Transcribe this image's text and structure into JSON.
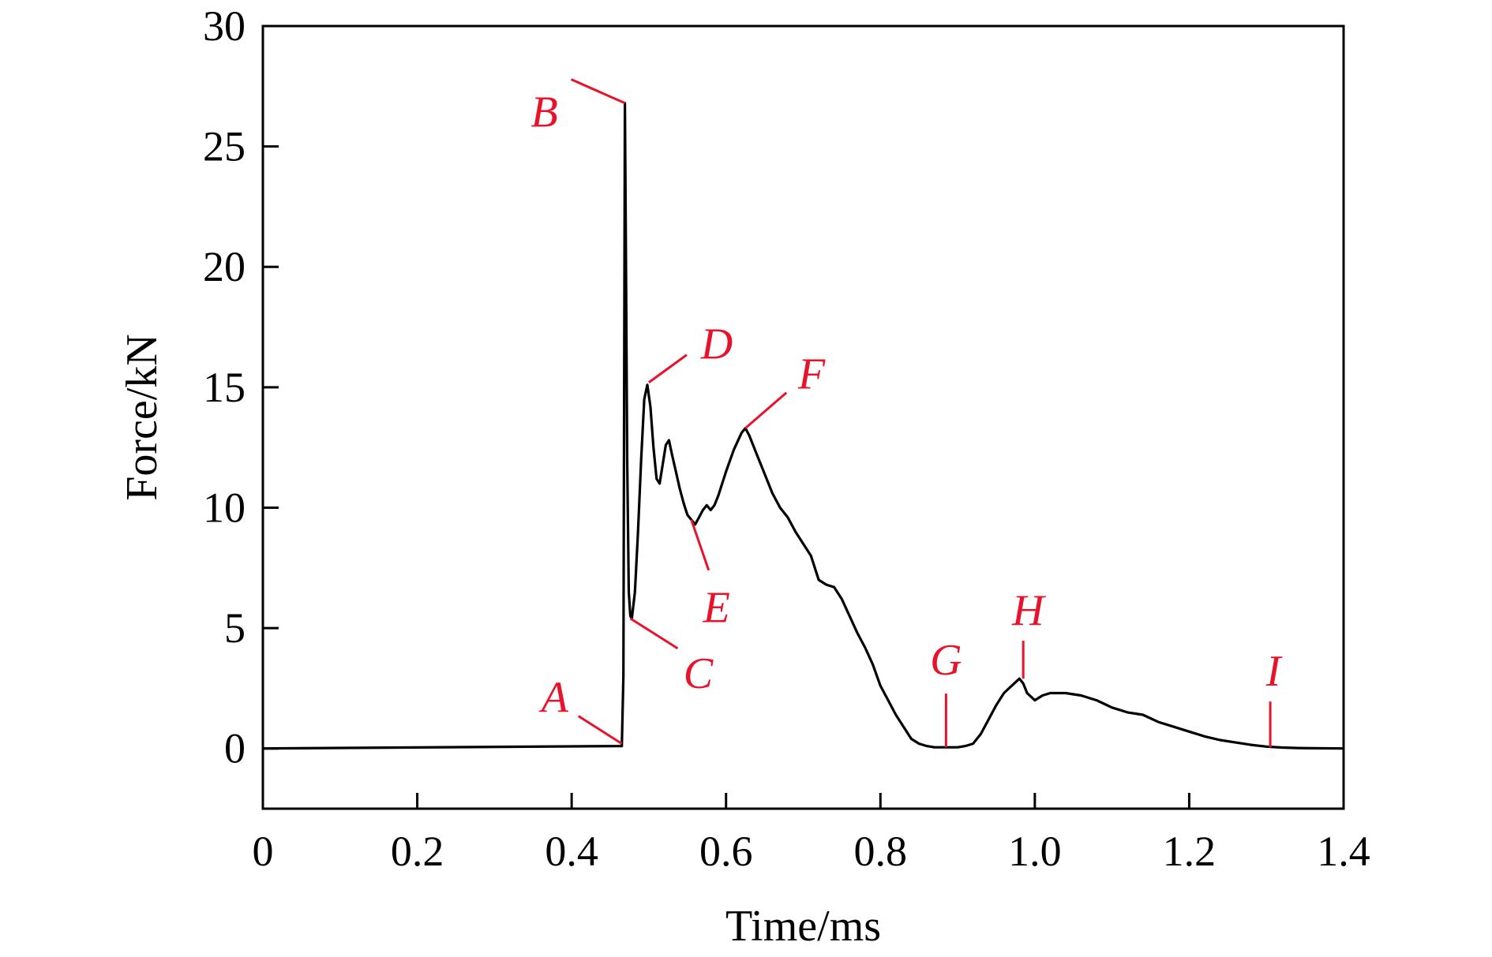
{
  "chart_data": {
    "type": "line",
    "title": "",
    "xlabel": "Time/ms",
    "ylabel": "Force/kN",
    "xlim": [
      0,
      1.4
    ],
    "ylim": [
      -2.5,
      30
    ],
    "xticks": [
      0,
      0.2,
      0.4,
      0.6,
      0.8,
      1.0,
      1.2,
      1.4
    ],
    "xtick_labels": [
      "0",
      "0.2",
      "0.4",
      "0.6",
      "0.8",
      "1.0",
      "1.2",
      "1.4"
    ],
    "yticks": [
      0,
      5,
      10,
      15,
      20,
      25,
      30
    ],
    "ytick_labels": [
      "0",
      "5",
      "10",
      "15",
      "20",
      "25",
      "30"
    ],
    "grid": false,
    "line_color": "#000000",
    "annotation_color": "#e8132b",
    "series": [
      {
        "x": [
          0,
          0.465,
          0.467,
          0.469,
          0.47,
          0.472,
          0.474,
          0.476,
          0.478,
          0.482,
          0.486,
          0.49,
          0.494,
          0.498,
          0.502,
          0.506,
          0.51,
          0.514,
          0.518,
          0.522,
          0.526,
          0.53,
          0.535,
          0.54,
          0.545,
          0.55,
          0.555,
          0.56,
          0.565,
          0.57,
          0.575,
          0.58,
          0.585,
          0.59,
          0.6,
          0.61,
          0.62,
          0.625,
          0.63,
          0.64,
          0.65,
          0.66,
          0.67,
          0.68,
          0.69,
          0.7,
          0.71,
          0.72,
          0.73,
          0.74,
          0.75,
          0.76,
          0.77,
          0.78,
          0.79,
          0.8,
          0.81,
          0.82,
          0.83,
          0.84,
          0.85,
          0.86,
          0.87,
          0.88,
          0.89,
          0.9,
          0.91,
          0.92,
          0.93,
          0.94,
          0.95,
          0.96,
          0.97,
          0.98,
          0.985,
          0.99,
          1.0,
          1.01,
          1.02,
          1.04,
          1.06,
          1.08,
          1.1,
          1.12,
          1.14,
          1.16,
          1.18,
          1.2,
          1.22,
          1.24,
          1.26,
          1.28,
          1.3,
          1.32,
          1.34,
          1.36,
          1.4
        ],
        "y": [
          0,
          0.1,
          3.0,
          26.8,
          22.0,
          12.0,
          6.5,
          5.5,
          5.4,
          6.5,
          9.0,
          12.0,
          14.5,
          15.1,
          14.2,
          12.5,
          11.2,
          11.0,
          11.8,
          12.6,
          12.8,
          12.2,
          11.5,
          10.8,
          10.2,
          9.7,
          9.5,
          9.3,
          9.6,
          9.9,
          10.1,
          9.9,
          10.1,
          10.5,
          11.5,
          12.4,
          13.1,
          13.3,
          13.0,
          12.2,
          11.4,
          10.6,
          10.0,
          9.6,
          9.0,
          8.5,
          8.0,
          7.0,
          6.8,
          6.7,
          6.2,
          5.5,
          4.8,
          4.2,
          3.5,
          2.6,
          2.0,
          1.4,
          0.9,
          0.4,
          0.2,
          0.1,
          0.05,
          0.05,
          0.05,
          0.05,
          0.1,
          0.2,
          0.6,
          1.2,
          1.8,
          2.3,
          2.6,
          2.9,
          2.7,
          2.3,
          2.0,
          2.2,
          2.3,
          2.3,
          2.2,
          2.0,
          1.7,
          1.5,
          1.4,
          1.1,
          0.9,
          0.7,
          0.5,
          0.35,
          0.25,
          0.15,
          0.08,
          0.04,
          0.02,
          0.01,
          0
        ]
      }
    ],
    "annotations": [
      {
        "label": "A",
        "x": 0.465,
        "y": 0.2
      },
      {
        "label": "B",
        "x": 0.469,
        "y": 26.8
      },
      {
        "label": "C",
        "x": 0.476,
        "y": 5.4
      },
      {
        "label": "D",
        "x": 0.5,
        "y": 15.2
      },
      {
        "label": "E",
        "x": 0.555,
        "y": 9.5
      },
      {
        "label": "F",
        "x": 0.625,
        "y": 13.3
      },
      {
        "label": "G",
        "x": 0.885,
        "y": 0.05
      },
      {
        "label": "H",
        "x": 0.985,
        "y": 2.9
      },
      {
        "label": "I",
        "x": 1.305,
        "y": 0.05
      }
    ]
  }
}
